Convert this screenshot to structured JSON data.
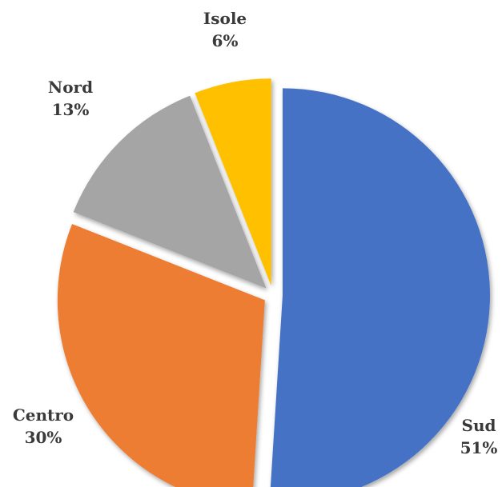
{
  "chart_data": {
    "type": "pie",
    "title": "",
    "categories": [
      "Sud",
      "Centro",
      "Nord",
      "Isole"
    ],
    "values": [
      51,
      30,
      13,
      6
    ],
    "labels": [
      "51%",
      "30%",
      "13%",
      "6%"
    ],
    "colors": [
      "#4472C4",
      "#ED7D31",
      "#A5A5A5",
      "#FFC000"
    ],
    "exploded": true,
    "legend": "none"
  }
}
